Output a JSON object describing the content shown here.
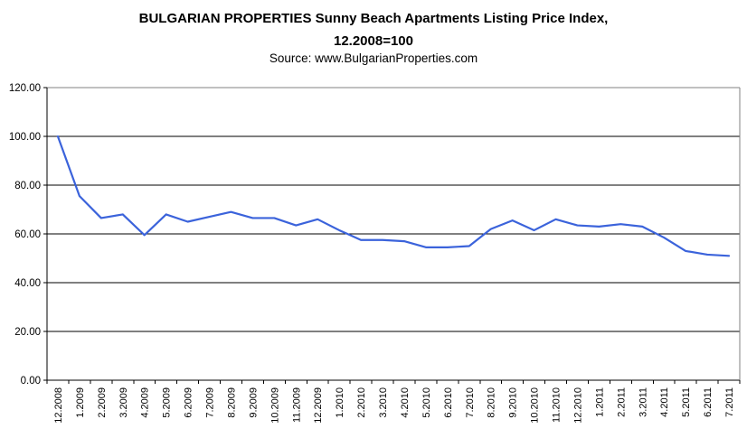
{
  "header": {
    "title_line1": "BULGARIAN PROPERTIES Sunny Beach Apartments Listing Price Index,",
    "title_line2": "12.2008=100",
    "source": "Source: www.BulgarianProperties.com"
  },
  "chart_data": {
    "type": "line",
    "title": "BULGARIAN PROPERTIES Sunny Beach Apartments Listing Price Index, 12.2008=100",
    "source": "Source: www.BulgarianProperties.com",
    "categories": [
      "12.2008",
      "1.2009",
      "2.2009",
      "3.2009",
      "4.2009",
      "5.2009",
      "6.2009",
      "7.2009",
      "8.2009",
      "9.2009",
      "10.2009",
      "11.2009",
      "12.2009",
      "1.2010",
      "2.2010",
      "3.2010",
      "4.2010",
      "5.2010",
      "6.2010",
      "7.2010",
      "8.2010",
      "9.2010",
      "10.2010",
      "11.2010",
      "12.2010",
      "1.2011",
      "2.2011",
      "3.2011",
      "4.2011",
      "5.2011",
      "6.2011",
      "7.2011"
    ],
    "series": [
      {
        "name": "Sunny Beach Apartments Listing Price Index (12.2008=100)",
        "values": [
          100,
          75.5,
          66.5,
          68,
          59.5,
          68,
          65,
          67,
          69,
          66.5,
          66.5,
          63.5,
          66,
          61.5,
          57.5,
          57.5,
          57,
          54.5,
          54.5,
          55,
          62,
          65.5,
          61.5,
          66,
          63.5,
          63,
          64,
          63,
          58.5,
          53,
          51.5,
          51
        ]
      }
    ],
    "xlabel": "",
    "ylabel": "",
    "ylim": [
      0,
      120
    ],
    "ytick_values": [
      0,
      20,
      40,
      60,
      80,
      100,
      120
    ],
    "ytick_labels": [
      "0.00",
      "20.00",
      "40.00",
      "60.00",
      "80.00",
      "100.00",
      "120.00"
    ],
    "grid": "horizontal",
    "legend_position": "none",
    "colors": {
      "line": "#3B63DB",
      "gridline": "#000000",
      "top_border": "#808080",
      "right_border": "#808080",
      "axis": "#000000",
      "text": "#000000",
      "background": "#FFFFFF"
    }
  }
}
